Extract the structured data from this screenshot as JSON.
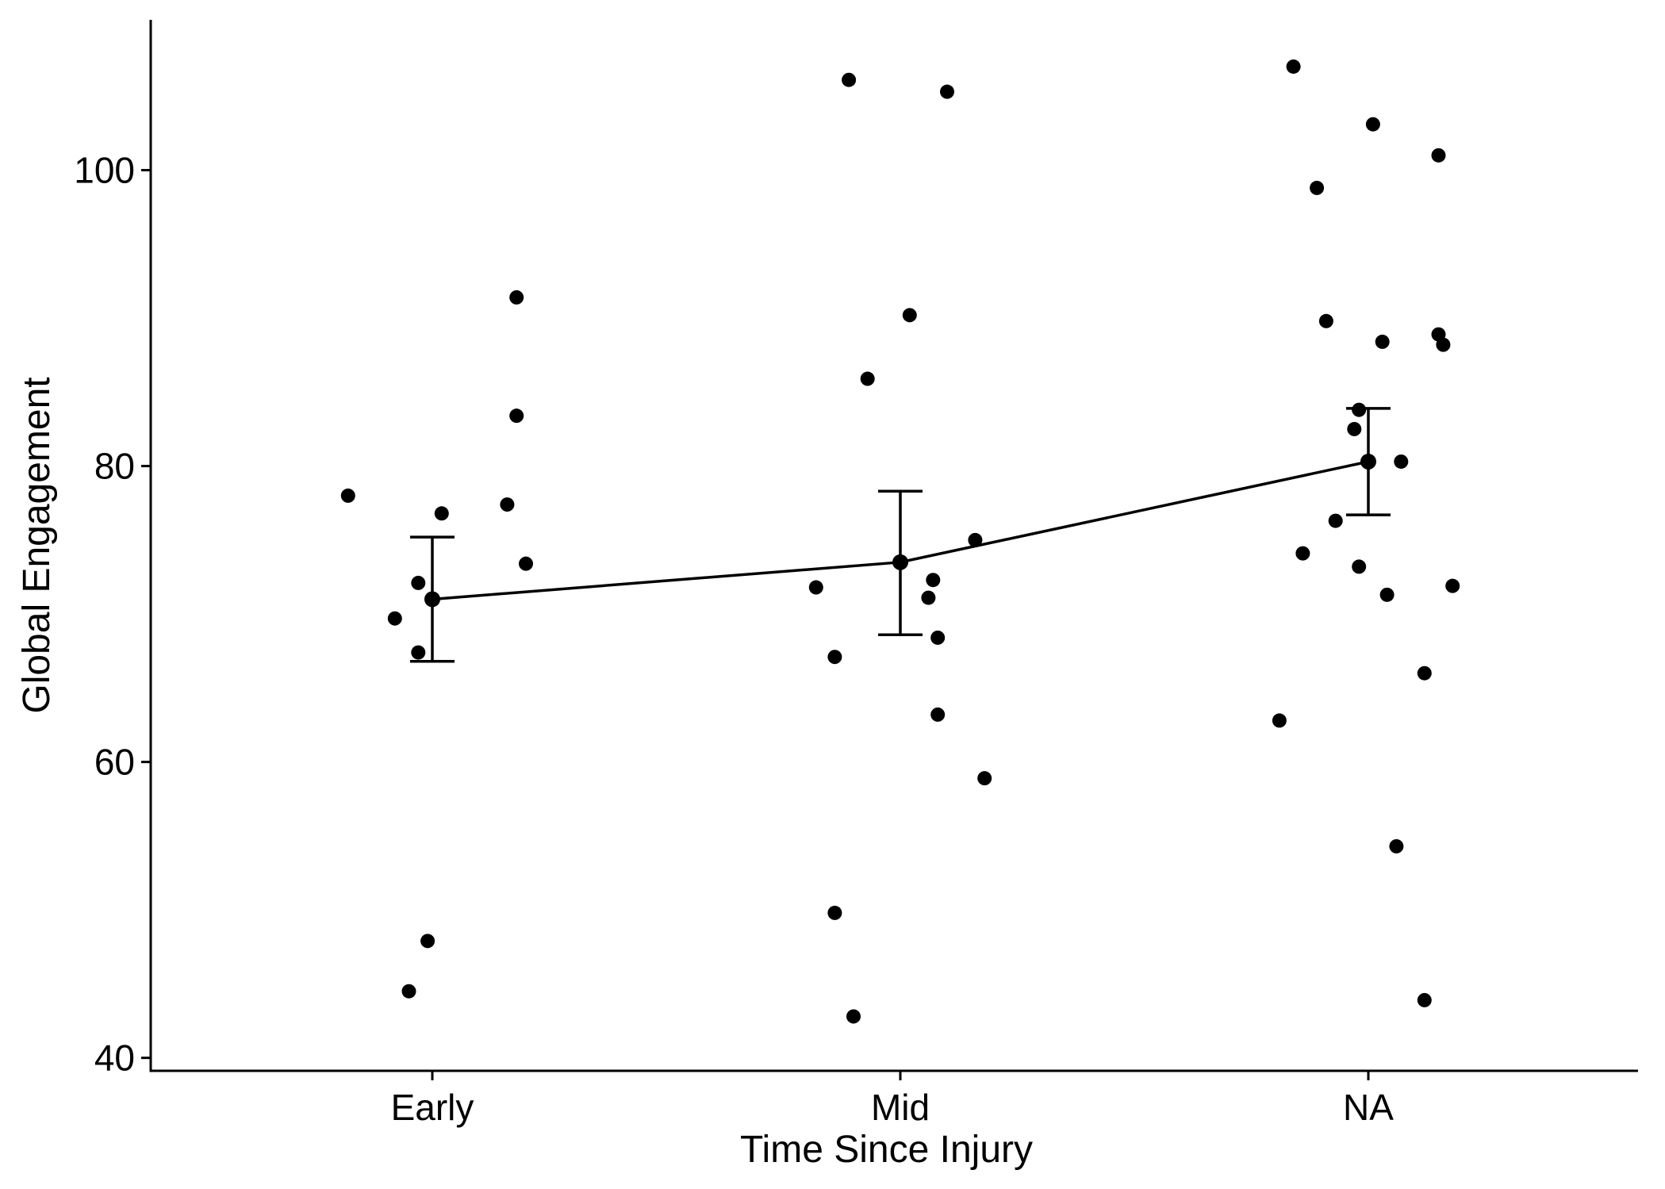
{
  "chart_data": {
    "type": "scatter",
    "xlabel": "Time Since Injury",
    "ylabel": "Global Engagement",
    "categories": [
      "Early",
      "Mid",
      "NA"
    ],
    "ylim": [
      39.5,
      110
    ],
    "yticks": [
      40,
      60,
      80,
      100
    ],
    "grid": false,
    "legend": "none",
    "points": [
      {
        "x": "Early",
        "offset": -0.18,
        "y": 78.0
      },
      {
        "x": "Early",
        "offset": -0.08,
        "y": 69.7
      },
      {
        "x": "Early",
        "offset": -0.03,
        "y": 72.1
      },
      {
        "x": "Early",
        "offset": -0.03,
        "y": 67.4
      },
      {
        "x": "Early",
        "offset": 0.02,
        "y": 76.8
      },
      {
        "x": "Early",
        "offset": 0.16,
        "y": 77.4
      },
      {
        "x": "Early",
        "offset": 0.18,
        "y": 91.4
      },
      {
        "x": "Early",
        "offset": 0.18,
        "y": 83.4
      },
      {
        "x": "Early",
        "offset": 0.2,
        "y": 73.4
      },
      {
        "x": "Early",
        "offset": -0.05,
        "y": 44.5
      },
      {
        "x": "Early",
        "offset": -0.01,
        "y": 47.9
      },
      {
        "x": "Mid",
        "offset": -0.18,
        "y": 71.8
      },
      {
        "x": "Mid",
        "offset": -0.14,
        "y": 67.1
      },
      {
        "x": "Mid",
        "offset": -0.14,
        "y": 49.8
      },
      {
        "x": "Mid",
        "offset": -0.11,
        "y": 106.1
      },
      {
        "x": "Mid",
        "offset": -0.1,
        "y": 42.8
      },
      {
        "x": "Mid",
        "offset": -0.07,
        "y": 85.9
      },
      {
        "x": "Mid",
        "offset": 0.02,
        "y": 90.2
      },
      {
        "x": "Mid",
        "offset": 0.06,
        "y": 71.1
      },
      {
        "x": "Mid",
        "offset": 0.07,
        "y": 72.3
      },
      {
        "x": "Mid",
        "offset": 0.08,
        "y": 68.4
      },
      {
        "x": "Mid",
        "offset": 0.08,
        "y": 63.2
      },
      {
        "x": "Mid",
        "offset": 0.1,
        "y": 105.3
      },
      {
        "x": "Mid",
        "offset": 0.16,
        "y": 75.0
      },
      {
        "x": "Mid",
        "offset": 0.18,
        "y": 58.9
      },
      {
        "x": "NA",
        "offset": -0.19,
        "y": 62.8
      },
      {
        "x": "NA",
        "offset": -0.16,
        "y": 107.0
      },
      {
        "x": "NA",
        "offset": -0.14,
        "y": 74.1
      },
      {
        "x": "NA",
        "offset": -0.11,
        "y": 98.8
      },
      {
        "x": "NA",
        "offset": -0.09,
        "y": 89.8
      },
      {
        "x": "NA",
        "offset": -0.07,
        "y": 76.3
      },
      {
        "x": "NA",
        "offset": -0.03,
        "y": 82.5
      },
      {
        "x": "NA",
        "offset": -0.02,
        "y": 83.8
      },
      {
        "x": "NA",
        "offset": -0.02,
        "y": 73.2
      },
      {
        "x": "NA",
        "offset": 0.01,
        "y": 103.1
      },
      {
        "x": "NA",
        "offset": 0.03,
        "y": 88.4
      },
      {
        "x": "NA",
        "offset": 0.04,
        "y": 71.3
      },
      {
        "x": "NA",
        "offset": 0.06,
        "y": 54.3
      },
      {
        "x": "NA",
        "offset": 0.07,
        "y": 80.3
      },
      {
        "x": "NA",
        "offset": 0.12,
        "y": 66.0
      },
      {
        "x": "NA",
        "offset": 0.12,
        "y": 43.9
      },
      {
        "x": "NA",
        "offset": 0.15,
        "y": 101.0
      },
      {
        "x": "NA",
        "offset": 0.15,
        "y": 88.9
      },
      {
        "x": "NA",
        "offset": 0.16,
        "y": 88.2
      },
      {
        "x": "NA",
        "offset": 0.18,
        "y": 71.9
      }
    ],
    "means": [
      {
        "x": "Early",
        "y": 71.0,
        "lower": 66.8,
        "upper": 75.2
      },
      {
        "x": "Mid",
        "y": 73.5,
        "lower": 68.6,
        "upper": 78.3
      },
      {
        "x": "NA",
        "y": 80.3,
        "lower": 76.7,
        "upper": 83.9
      }
    ]
  }
}
